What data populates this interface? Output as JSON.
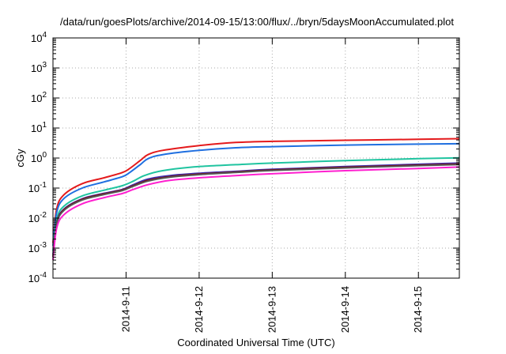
{
  "chart_data": {
    "type": "line",
    "title": "/data/run/goesPlots/archive/2014-09-15/13:00/flux/../bryn/5daysMoonAccumulated.plot",
    "xlabel": "Coordinated Universal Time (UTC)",
    "ylabel": "cGy",
    "x_ticks": [
      "2014-9-11",
      "2014-9-12",
      "2014-9-13",
      "2014-9-14",
      "2014-9-15"
    ],
    "x_tick_day_offsets": [
      1,
      2,
      3,
      4,
      5
    ],
    "xlim_days": [
      0,
      5.56
    ],
    "ylim": [
      0.0001,
      10000
    ],
    "y_scale": "log",
    "y_tick_exponents": [
      -4,
      -3,
      -2,
      -1,
      0,
      1,
      2,
      3,
      4
    ],
    "grid": true,
    "series": [
      {
        "color": "#e41a1c",
        "points": [
          [
            0.0,
            0.0015
          ],
          [
            0.05,
            0.02
          ],
          [
            0.15,
            0.06
          ],
          [
            0.4,
            0.14
          ],
          [
            0.7,
            0.22
          ],
          [
            0.95,
            0.33
          ],
          [
            1.05,
            0.45
          ],
          [
            1.2,
            0.85
          ],
          [
            1.3,
            1.3
          ],
          [
            1.5,
            1.8
          ],
          [
            2.0,
            2.6
          ],
          [
            2.5,
            3.3
          ],
          [
            3.0,
            3.6
          ],
          [
            4.0,
            3.9
          ],
          [
            5.0,
            4.2
          ],
          [
            5.56,
            4.4
          ]
        ]
      },
      {
        "color": "#1f6fe0",
        "points": [
          [
            0.0,
            0.0012
          ],
          [
            0.05,
            0.015
          ],
          [
            0.15,
            0.045
          ],
          [
            0.4,
            0.1
          ],
          [
            0.7,
            0.16
          ],
          [
            0.95,
            0.24
          ],
          [
            1.05,
            0.33
          ],
          [
            1.2,
            0.62
          ],
          [
            1.3,
            0.95
          ],
          [
            1.5,
            1.3
          ],
          [
            2.0,
            1.8
          ],
          [
            2.5,
            2.2
          ],
          [
            3.0,
            2.4
          ],
          [
            4.0,
            2.7
          ],
          [
            5.0,
            2.9
          ],
          [
            5.56,
            3.0
          ]
        ]
      },
      {
        "color": "#20c4a0",
        "points": [
          [
            0.0,
            0.0008
          ],
          [
            0.05,
            0.009
          ],
          [
            0.15,
            0.025
          ],
          [
            0.4,
            0.055
          ],
          [
            0.7,
            0.085
          ],
          [
            0.95,
            0.12
          ],
          [
            1.1,
            0.17
          ],
          [
            1.25,
            0.26
          ],
          [
            1.5,
            0.38
          ],
          [
            2.0,
            0.52
          ],
          [
            2.5,
            0.6
          ],
          [
            3.0,
            0.68
          ],
          [
            4.0,
            0.82
          ],
          [
            5.0,
            0.95
          ],
          [
            5.56,
            1.02
          ]
        ]
      },
      {
        "color": "#3a2fb0",
        "points": [
          [
            0.0,
            0.0006
          ],
          [
            0.05,
            0.007
          ],
          [
            0.15,
            0.02
          ],
          [
            0.4,
            0.044
          ],
          [
            0.7,
            0.067
          ],
          [
            0.95,
            0.09
          ],
          [
            1.1,
            0.13
          ],
          [
            1.3,
            0.2
          ],
          [
            1.6,
            0.26
          ],
          [
            2.0,
            0.31
          ],
          [
            2.5,
            0.36
          ],
          [
            3.0,
            0.42
          ],
          [
            4.0,
            0.52
          ],
          [
            5.0,
            0.62
          ],
          [
            5.56,
            0.68
          ]
        ]
      },
      {
        "color": "#8b0000",
        "points": [
          [
            0.0,
            0.0005
          ],
          [
            0.05,
            0.0065
          ],
          [
            0.15,
            0.019
          ],
          [
            0.4,
            0.042
          ],
          [
            0.7,
            0.064
          ],
          [
            0.95,
            0.086
          ],
          [
            1.1,
            0.12
          ],
          [
            1.3,
            0.18
          ],
          [
            1.6,
            0.24
          ],
          [
            2.0,
            0.29
          ],
          [
            2.5,
            0.34
          ],
          [
            3.0,
            0.4
          ],
          [
            4.0,
            0.49
          ],
          [
            5.0,
            0.58
          ],
          [
            5.56,
            0.63
          ]
        ]
      },
      {
        "color": "#555555",
        "points": [
          [
            0.0,
            0.0005
          ],
          [
            0.05,
            0.0062
          ],
          [
            0.15,
            0.018
          ],
          [
            0.4,
            0.04
          ],
          [
            0.7,
            0.061
          ],
          [
            0.95,
            0.083
          ],
          [
            1.1,
            0.115
          ],
          [
            1.3,
            0.17
          ],
          [
            1.6,
            0.23
          ],
          [
            2.0,
            0.28
          ],
          [
            2.5,
            0.33
          ],
          [
            3.0,
            0.385
          ],
          [
            4.0,
            0.47
          ],
          [
            5.0,
            0.56
          ],
          [
            5.56,
            0.61
          ]
        ]
      },
      {
        "color": "#ff1fcf",
        "points": [
          [
            0.0,
            0.0004
          ],
          [
            0.05,
            0.0045
          ],
          [
            0.15,
            0.013
          ],
          [
            0.4,
            0.03
          ],
          [
            0.7,
            0.048
          ],
          [
            0.95,
            0.066
          ],
          [
            1.1,
            0.09
          ],
          [
            1.3,
            0.13
          ],
          [
            1.6,
            0.18
          ],
          [
            2.0,
            0.22
          ],
          [
            2.5,
            0.26
          ],
          [
            3.0,
            0.3
          ],
          [
            4.0,
            0.38
          ],
          [
            5.0,
            0.45
          ],
          [
            5.56,
            0.5
          ]
        ]
      }
    ]
  }
}
